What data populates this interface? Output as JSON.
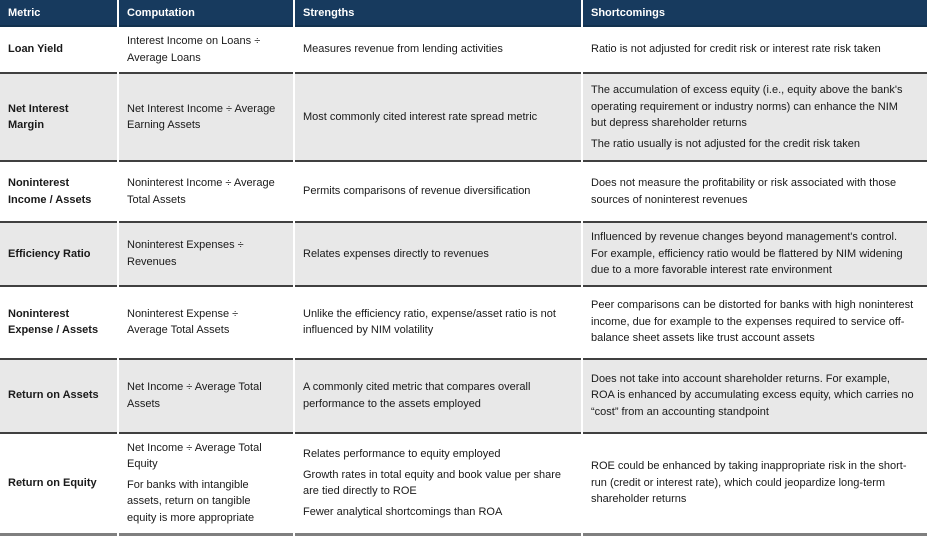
{
  "colors": {
    "header_bg": "#173A5E",
    "header_rule": "#12314E",
    "alt_row_bg": "#E8E8E8",
    "row_rule": "#404040",
    "bottom_rule": "#7F7F7F",
    "header_text": "#FFFFFF",
    "body_text": "#1A1A1A"
  },
  "table": {
    "columns": [
      {
        "key": "metric",
        "label": "Metric"
      },
      {
        "key": "computation",
        "label": "Computation"
      },
      {
        "key": "strengths",
        "label": "Strengths"
      },
      {
        "key": "shortcomings",
        "label": "Shortcomings"
      }
    ],
    "rows": [
      {
        "metric": "Loan Yield",
        "computation": [
          "Interest Income on Loans ÷ Average Loans"
        ],
        "strengths": [
          "Measures revenue from lending activities"
        ],
        "shortcomings": [
          "Ratio is not adjusted for credit risk or interest rate risk taken"
        ]
      },
      {
        "metric": "Net Interest Margin",
        "computation": [
          "Net Interest Income ÷ Average Earning Assets"
        ],
        "strengths": [
          "Most commonly cited interest rate spread metric"
        ],
        "shortcomings": [
          "The accumulation of excess equity (i.e., equity above the bank's operating requirement or industry norms) can enhance the NIM but depress shareholder returns",
          "The ratio usually is not adjusted for the credit risk taken"
        ]
      },
      {
        "metric": "Noninterest Income / Assets",
        "computation": [
          "Noninterest Income ÷ Average Total Assets"
        ],
        "strengths": [
          "Permits comparisons of revenue diversification"
        ],
        "shortcomings": [
          "Does not measure the profitability or risk associated with those sources of noninterest revenues"
        ]
      },
      {
        "metric": "Efficiency Ratio",
        "computation": [
          "Noninterest Expenses ÷ Revenues"
        ],
        "strengths": [
          "Relates expenses directly to revenues"
        ],
        "shortcomings": [
          "Influenced by revenue changes beyond management's control.  For example, efficiency ratio would be flattered by NIM widening due to a more favorable interest rate environment"
        ]
      },
      {
        "metric": "Noninterest Expense / Assets",
        "computation": [
          "Noninterest Expense ÷ Average Total Assets"
        ],
        "strengths": [
          "Unlike the efficiency ratio, expense/asset ratio is not influenced by NIM volatility"
        ],
        "shortcomings": [
          "Peer comparisons can be distorted for banks with high noninterest income, due for example to the expenses required to service off-balance sheet assets like trust account assets"
        ]
      },
      {
        "metric": "Return on Assets",
        "computation": [
          "Net Income ÷ Average Total Assets"
        ],
        "strengths": [
          "A commonly cited metric that compares overall performance to the assets employed"
        ],
        "shortcomings": [
          "Does not take into account shareholder returns.  For example, ROA is enhanced by accumulating excess equity, which carries no “cost” from an accounting standpoint"
        ]
      },
      {
        "metric": "Return on Equity",
        "computation": [
          "Net Income ÷ Average Total Equity",
          "For banks with intangible assets, return on tangible equity is more appropriate"
        ],
        "strengths": [
          "Relates performance to equity employed",
          "Growth rates in total equity and book value per share are tied directly to ROE",
          "Fewer analytical shortcomings than ROA"
        ],
        "shortcomings": [
          "ROE could be enhanced by taking inappropriate risk in the short-run (credit or interest rate), which could jeopardize long-term shareholder returns"
        ]
      }
    ]
  }
}
